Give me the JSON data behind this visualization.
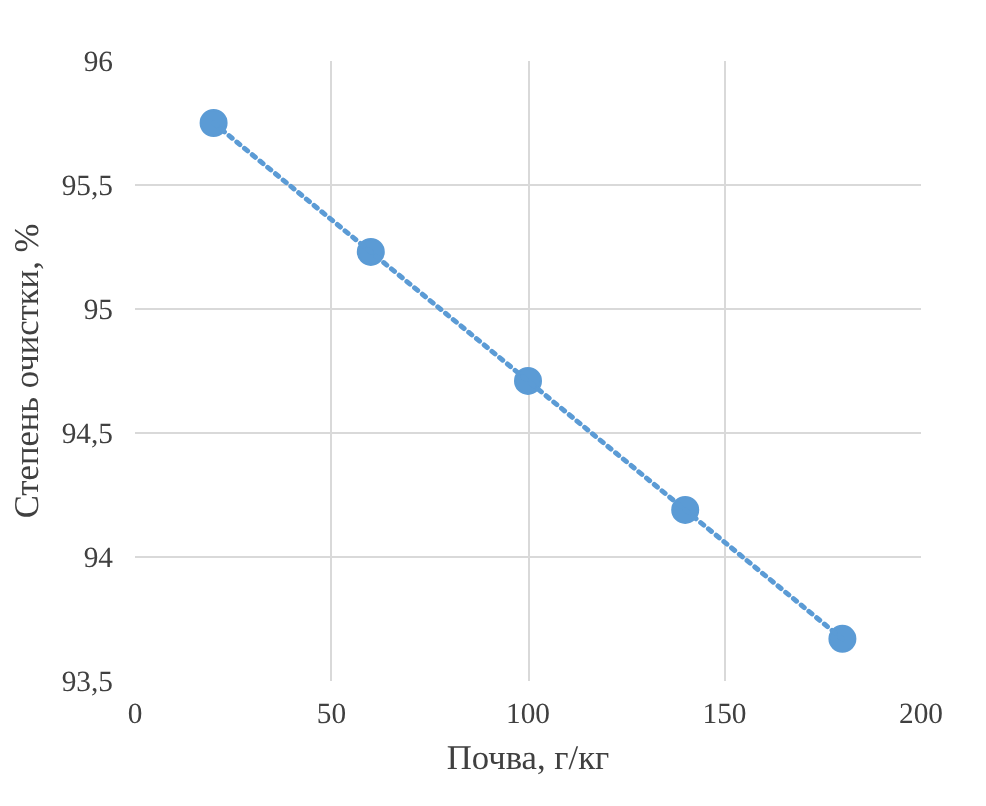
{
  "chart_data": {
    "type": "scatter",
    "xlabel": "Почва, г/кг",
    "ylabel": "Степень очистки, %",
    "x": [
      20,
      60,
      100,
      140,
      180
    ],
    "series": [
      {
        "color": "#5b9bd5",
        "marker": "circle",
        "values": [
          95.75,
          95.23,
          94.71,
          94.19,
          93.67
        ]
      },
      {
        "type": "line",
        "color": "#5b9bd5",
        "line_style": "dotted",
        "x": [
          20,
          180
        ],
        "values": [
          95.75,
          93.67
        ]
      }
    ],
    "xlim": [
      0,
      200
    ],
    "xticks": [
      0,
      50,
      100,
      150,
      200
    ],
    "ylim": [
      93.5,
      96
    ],
    "yticks": [
      {
        "value": 93.5,
        "label": "93,5"
      },
      94,
      {
        "value": 94.5,
        "label": "94,5"
      },
      95,
      {
        "value": 95.5,
        "label": "95,5"
      },
      96
    ],
    "grid": true
  }
}
